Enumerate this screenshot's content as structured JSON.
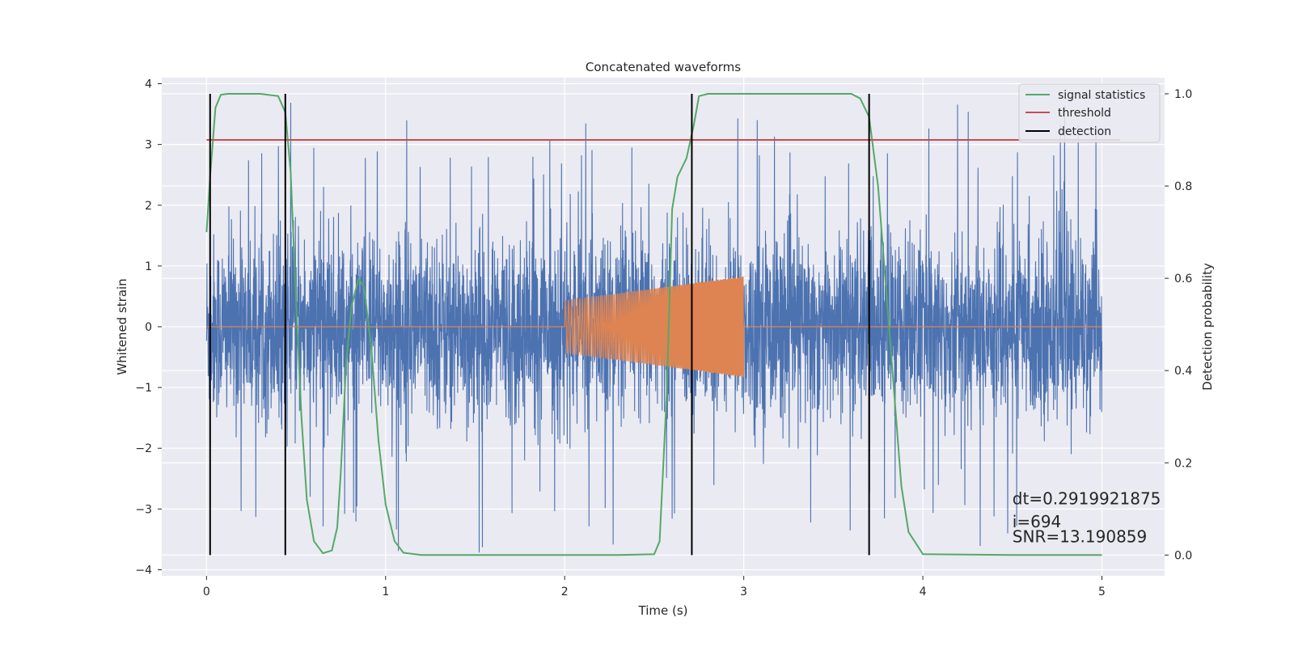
{
  "chart_data": {
    "type": "line",
    "title": "Concatenated waveforms",
    "xlabel": "Time (s)",
    "ylabel_left": "Whitened strain",
    "ylabel_right": "Detection probability",
    "xlim": [
      -0.25,
      5.35
    ],
    "ylim_left": [
      -4.1,
      4.1
    ],
    "ylim_right": [
      -0.045,
      1.035
    ],
    "x_ticks": [
      0,
      1,
      2,
      3,
      4,
      5
    ],
    "y_ticks_left": [
      4,
      3,
      2,
      1,
      0,
      -1,
      -2,
      -3,
      -4
    ],
    "y_ticks_right": [
      1.0,
      0.8,
      0.6,
      0.4,
      0.2,
      0.0
    ],
    "x_tick_labels": [
      "0",
      "1",
      "2",
      "3",
      "4",
      "5"
    ],
    "y_tick_labels_left": [
      "4",
      "3",
      "2",
      "1",
      "0",
      "−1",
      "−2",
      "−3",
      "−4"
    ],
    "y_tick_labels_right": [
      "1.0",
      "0.8",
      "0.6",
      "0.4",
      "0.2",
      "0.0"
    ],
    "grid": true,
    "legend_position": "top-right",
    "legend": [
      {
        "label": "signal statistics",
        "color": "#55a868"
      },
      {
        "label": "threshold",
        "color": "#c44e52"
      },
      {
        "label": "detection",
        "color": "#000000"
      }
    ],
    "colors": {
      "background": "#eaeaf2",
      "grid": "#ffffff",
      "strain": "#4c72b0",
      "injection": "#dd8452",
      "signal_statistics": "#55a868",
      "threshold": "#c44e52",
      "detection": "#000000"
    },
    "series": [
      {
        "role": "whitened strain noise",
        "x_range": [
          0,
          5
        ],
        "amplitude_std": 0.75,
        "peak_max": 3.72,
        "peak_min": -3.72
      },
      {
        "role": "injected chirp",
        "x_range": [
          2.0,
          3.0
        ],
        "baseline": 0,
        "envelope_start": 0.43,
        "envelope_end": 0.83
      },
      {
        "name": "signal statistics",
        "x": [
          0,
          0.02,
          0.05,
          0.08,
          0.12,
          0.3,
          0.4,
          0.44,
          0.47,
          0.5,
          0.53,
          0.56,
          0.6,
          0.65,
          0.7,
          0.73,
          0.75,
          0.78,
          0.81,
          0.85,
          0.88,
          0.92,
          0.96,
          1.0,
          1.05,
          1.1,
          1.2,
          1.5,
          2.0,
          2.3,
          2.5,
          2.53,
          2.57,
          2.6,
          2.63,
          2.68,
          2.72,
          2.75,
          2.8,
          3.0,
          3.5,
          3.6,
          3.65,
          3.7,
          3.75,
          3.8,
          3.85,
          3.88,
          3.92,
          4.0,
          4.5,
          5.0
        ],
        "y": [
          0.7,
          0.82,
          0.97,
          0.998,
          1.0,
          1.0,
          0.995,
          0.96,
          0.83,
          0.55,
          0.3,
          0.12,
          0.03,
          0.004,
          0.01,
          0.06,
          0.18,
          0.42,
          0.54,
          0.6,
          0.58,
          0.45,
          0.25,
          0.11,
          0.03,
          0.005,
          0.0,
          0.0,
          0.0,
          0.0,
          0.002,
          0.03,
          0.35,
          0.75,
          0.82,
          0.86,
          0.93,
          0.995,
          1.0,
          1.0,
          1.0,
          1.0,
          0.99,
          0.95,
          0.8,
          0.55,
          0.3,
          0.15,
          0.05,
          0.002,
          0.0,
          0.0
        ]
      },
      {
        "name": "threshold",
        "x": [
          0,
          5.1
        ],
        "y": [
          0.9,
          0.9
        ]
      },
      {
        "name": "detection",
        "x": [
          0.02,
          0.44,
          2.71,
          3.7
        ],
        "y_range": [
          0,
          1
        ]
      }
    ],
    "annotations": [
      {
        "text": "dt=0.2919921875",
        "x": 4.5,
        "y": -2.92
      },
      {
        "text": " i=694",
        "x": 4.5,
        "y": -3.3
      },
      {
        "text": "SNR=13.190859",
        "x": 4.5,
        "y": -3.55
      }
    ]
  }
}
